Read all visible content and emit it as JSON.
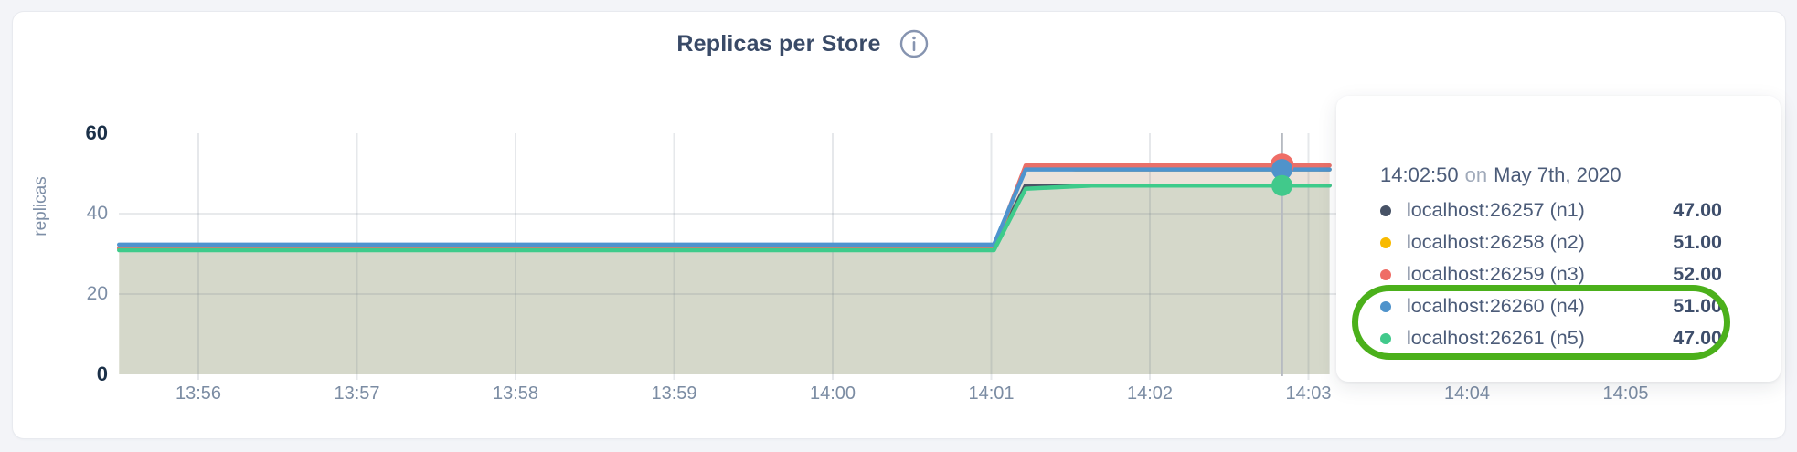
{
  "header": {
    "title": "Replicas per Store",
    "info_icon_glyph": "i"
  },
  "chart_data": {
    "type": "area",
    "title": "Replicas per Store",
    "xlabel": "",
    "ylabel": "replicas",
    "ylim": [
      0,
      60
    ],
    "grid": true,
    "legend_position": "tooltip",
    "yticks": [
      {
        "label": "0",
        "value": 0,
        "bold": true
      },
      {
        "label": "20",
        "value": 20,
        "bold": false
      },
      {
        "label": "40",
        "value": 40,
        "bold": false
      },
      {
        "label": "60",
        "value": 60,
        "bold": true
      }
    ],
    "xticks": [
      {
        "label": "13:56",
        "t": 60
      },
      {
        "label": "13:57",
        "t": 120
      },
      {
        "label": "13:58",
        "t": 180
      },
      {
        "label": "13:59",
        "t": 240
      },
      {
        "label": "14:00",
        "t": 300
      },
      {
        "label": "14:01",
        "t": 360
      },
      {
        "label": "14:02",
        "t": 420
      },
      {
        "label": "14:03",
        "t": 480
      },
      {
        "label": "14:04",
        "t": 540
      },
      {
        "label": "14:05",
        "t": 600
      }
    ],
    "series": [
      {
        "name": "localhost:26257 (n1)",
        "color": "#4c5466",
        "dot_color": "#475266",
        "points": [
          [
            30,
            31.4
          ],
          [
            361,
            31.4
          ],
          [
            373,
            47
          ],
          [
            488,
            47
          ]
        ]
      },
      {
        "name": "localhost:26258 (n2)",
        "color": "#efa43e",
        "dot_color": "#f8ba00",
        "points": [
          [
            30,
            31.45
          ],
          [
            361,
            31.45
          ],
          [
            373,
            51.5
          ],
          [
            384,
            51.5
          ],
          [
            392,
            51
          ],
          [
            488,
            51
          ]
        ]
      },
      {
        "name": "localhost:26259 (n3)",
        "color": "#e97069",
        "dot_color": "#ef6d66",
        "points": [
          [
            30,
            31.5
          ],
          [
            361,
            31.5
          ],
          [
            373,
            52
          ],
          [
            488,
            52
          ]
        ]
      },
      {
        "name": "localhost:26260 (n4)",
        "color": "#4e94ce",
        "dot_color": "#4f93cb",
        "points": [
          [
            30,
            32.3
          ],
          [
            361,
            32.3
          ],
          [
            373,
            51
          ],
          [
            488,
            51
          ]
        ]
      },
      {
        "name": "localhost:26261 (n5)",
        "color": "#3ecb8b",
        "dot_color": "#41c98b",
        "points": [
          [
            30,
            30.9
          ],
          [
            361,
            30.9
          ],
          [
            373,
            46.2
          ],
          [
            398,
            47
          ],
          [
            488,
            47
          ]
        ]
      }
    ],
    "fills": [
      {
        "below": 4,
        "color": "#d5d8ca"
      },
      {
        "between": [
          3,
          4
        ],
        "color": "#ece3da"
      },
      {
        "between": [
          2,
          3
        ],
        "color": "#f7f0ec"
      }
    ],
    "hover": {
      "t": 470,
      "time": "14:02:50",
      "line_color": "#b6bac1",
      "dots": [
        {
          "series": 2,
          "r": 13
        },
        {
          "series": 3,
          "r": 11.5
        },
        {
          "series": 4,
          "r": 11.5
        }
      ]
    }
  },
  "tooltip": {
    "time": "14:02:50",
    "on_word": "on",
    "date": "May 7th, 2020",
    "rows": [
      {
        "label": "localhost:26257 (n1)",
        "value": "47.00",
        "color": "#475266"
      },
      {
        "label": "localhost:26258 (n2)",
        "value": "51.00",
        "color": "#f8ba00"
      },
      {
        "label": "localhost:26259 (n3)",
        "value": "52.00",
        "color": "#ef6d66"
      },
      {
        "label": "localhost:26260 (n4)",
        "value": "51.00",
        "color": "#4f93cb"
      },
      {
        "label": "localhost:26261 (n5)",
        "value": "47.00",
        "color": "#41c98b"
      }
    ]
  },
  "annotation": {
    "type": "hand-drawn-oval",
    "color": "#4bb01b",
    "highlighted_rows": [
      "localhost:26260 (n4)",
      "localhost:26261 (n5)"
    ]
  }
}
